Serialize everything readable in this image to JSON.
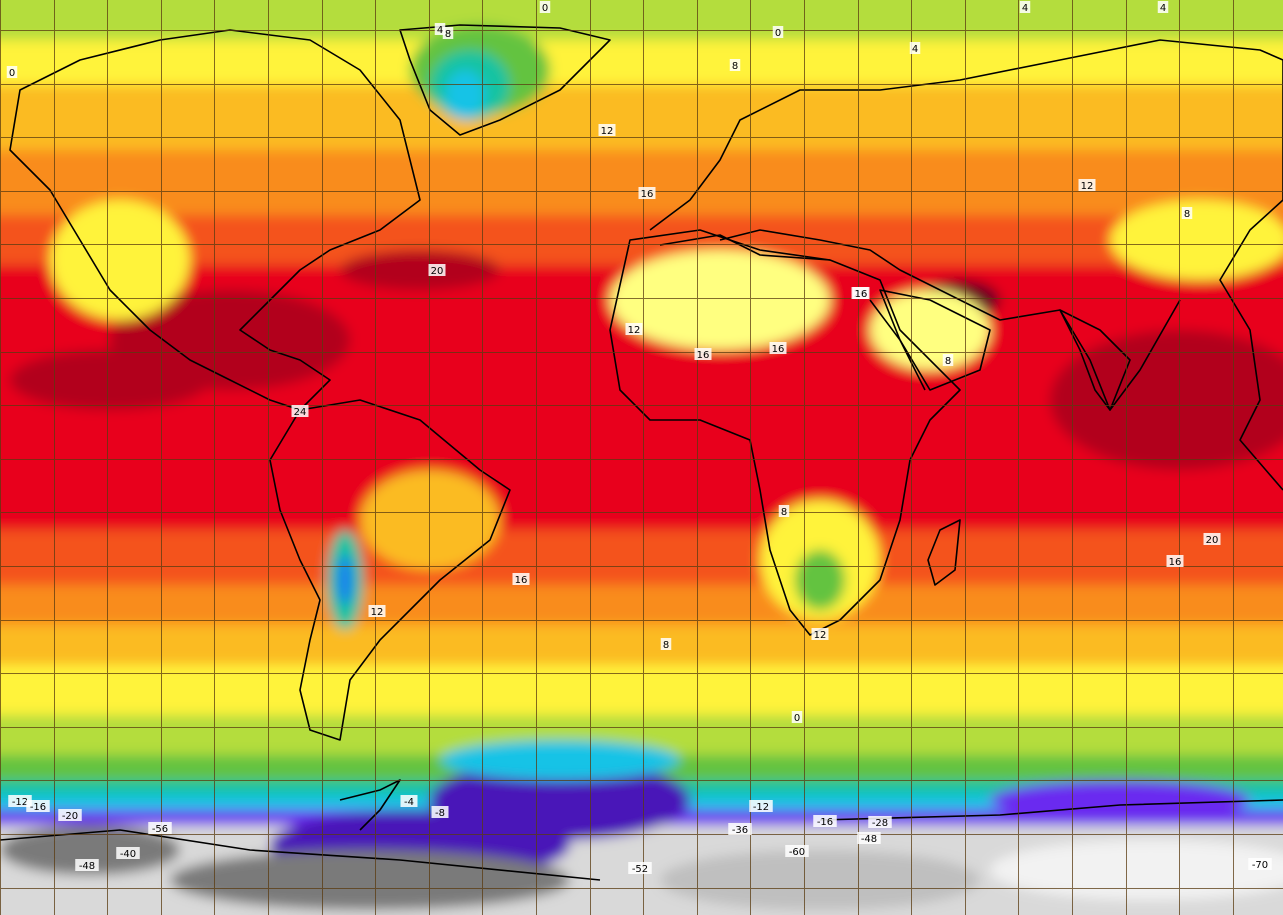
{
  "map": {
    "type": "global temperature contour map",
    "palette": {
      "deep_red": "#b2001f",
      "red": "#e8001c",
      "orange_red": "#f4531a",
      "orange": "#f98c1e",
      "yellow_orange": "#fbbb22",
      "yellow": "#fff33a",
      "pale_yellow": "#ffff80",
      "yellow_green": "#b4dd3c",
      "green": "#63c341",
      "teal": "#17c3a2",
      "cyan": "#17c3e6",
      "blue": "#1f7df0",
      "violet": "#6a2cf0",
      "purple": "#4a14b8",
      "light_grey": "#d9d9d9",
      "grey": "#a6a6a6",
      "dark_grey": "#7a7a7a",
      "grid": "#6b4a1a",
      "coast": "#000000"
    },
    "contour_labels": [
      "0",
      "4",
      "8",
      "0",
      "4",
      "4",
      "0",
      "8",
      "4",
      "12",
      "16",
      "12",
      "8",
      "20",
      "20",
      "12",
      "24",
      "16",
      "8",
      "8",
      "16",
      "12",
      "8",
      "12",
      "16",
      "20",
      "16",
      "16",
      "0",
      "-12",
      "-16",
      "-20",
      "-4",
      "-8",
      "-12",
      "-36",
      "-16",
      "-48",
      "-60",
      "-52",
      "-40",
      "-48",
      "-70",
      "-28",
      "-56"
    ]
  }
}
